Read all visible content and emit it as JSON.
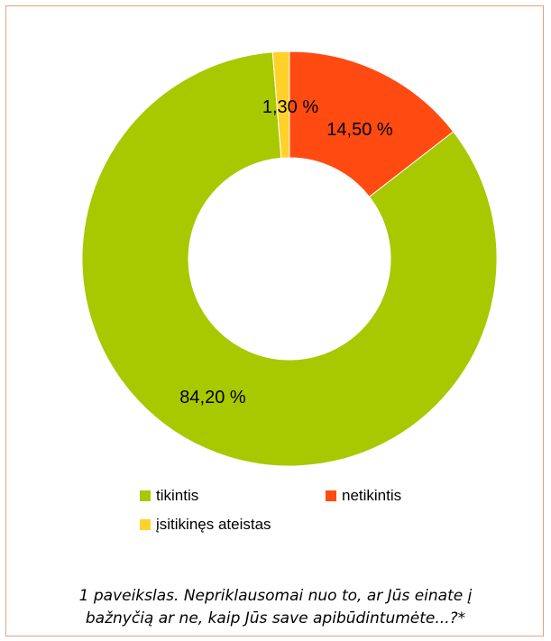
{
  "chart_data": {
    "type": "pie",
    "title": "",
    "slices": [
      {
        "label": "tikintis",
        "value": 84.2,
        "display": "84,20 %",
        "color": "#a8c800"
      },
      {
        "label": "netikintis",
        "value": 14.5,
        "display": "14,50 %",
        "color": "#ff4a12"
      },
      {
        "label": "įsitikinęs ateistas",
        "value": 1.3,
        "display": "1,30 %",
        "color": "#ffd22a"
      }
    ],
    "legend_position": "bottom"
  },
  "legend": {
    "items": [
      {
        "label": "tikintis",
        "color": "#a8c800"
      },
      {
        "label": "netikintis",
        "color": "#ff4a12"
      },
      {
        "label": "įsitikinęs ateistas",
        "color": "#ffd22a"
      }
    ]
  },
  "caption": {
    "line1": "1 paveikslas. Nepriklausomai nuo to, ar Jūs einate į",
    "line2": "bažnyčią ar ne, kaip Jūs save apibūdintumėte...?*"
  }
}
